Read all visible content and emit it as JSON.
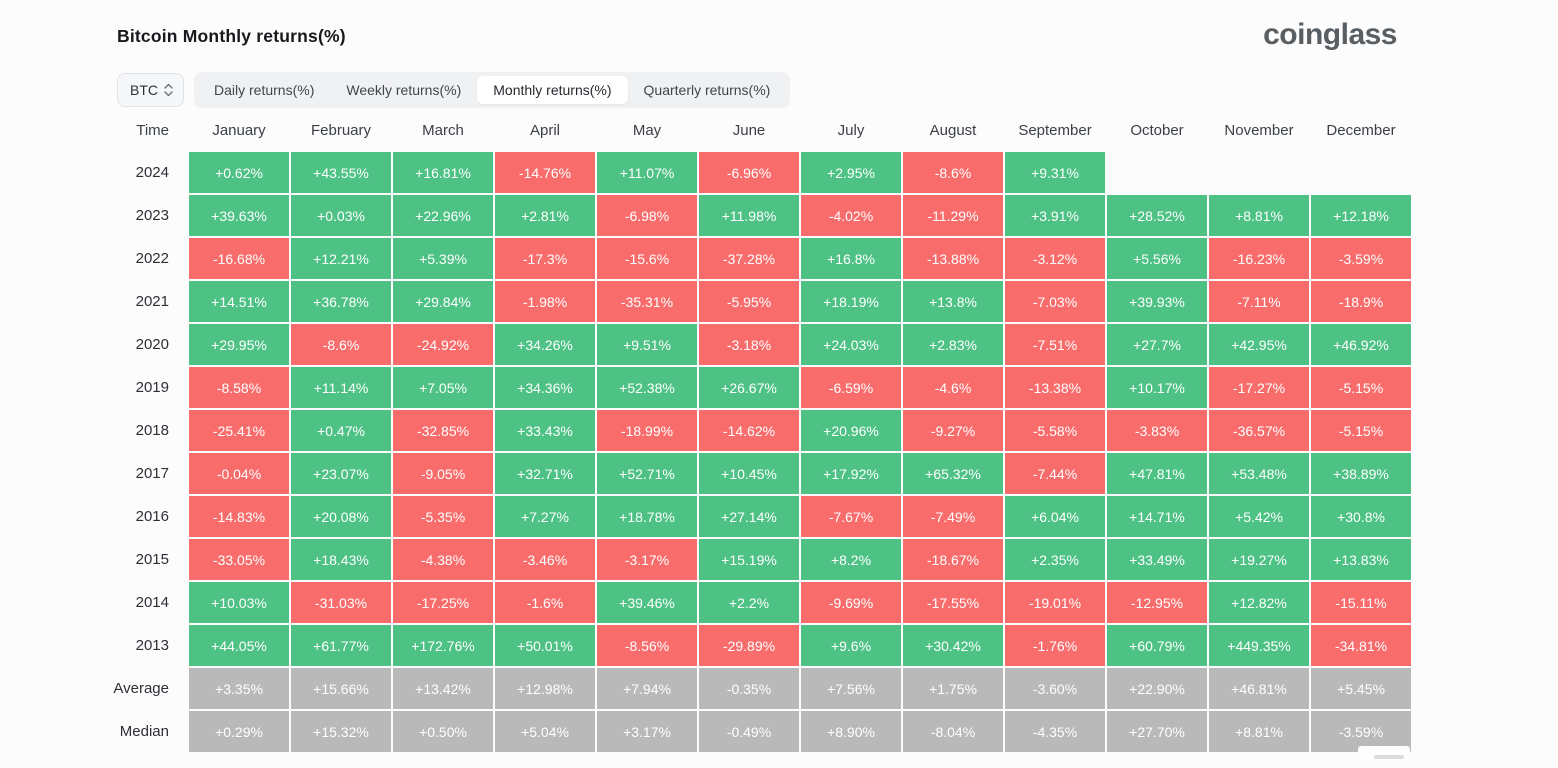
{
  "header": {
    "title": "Bitcoin Monthly returns(%)",
    "brand": "coinglass"
  },
  "controls": {
    "symbol_select": {
      "value": "BTC"
    },
    "tabs": [
      {
        "label": "Daily returns(%)",
        "active": false
      },
      {
        "label": "Weekly returns(%)",
        "active": false
      },
      {
        "label": "Monthly returns(%)",
        "active": true
      },
      {
        "label": "Quarterly returns(%)",
        "active": false
      }
    ]
  },
  "colors": {
    "positive": "#4dc284",
    "negative": "#f96c6c",
    "neutral": "#b9b9b9"
  },
  "chart_data": {
    "type": "heatmap",
    "title": "Bitcoin Monthly returns(%)",
    "columns": [
      "Time",
      "January",
      "February",
      "March",
      "April",
      "May",
      "June",
      "July",
      "August",
      "September",
      "October",
      "November",
      "December"
    ],
    "rows": [
      {
        "label": "2024",
        "neutral": false,
        "values": [
          "+0.62%",
          "+43.55%",
          "+16.81%",
          "-14.76%",
          "+11.07%",
          "-6.96%",
          "+2.95%",
          "-8.6%",
          "+9.31%",
          null,
          null,
          null
        ]
      },
      {
        "label": "2023",
        "neutral": false,
        "values": [
          "+39.63%",
          "+0.03%",
          "+22.96%",
          "+2.81%",
          "-6.98%",
          "+11.98%",
          "-4.02%",
          "-11.29%",
          "+3.91%",
          "+28.52%",
          "+8.81%",
          "+12.18%"
        ]
      },
      {
        "label": "2022",
        "neutral": false,
        "values": [
          "-16.68%",
          "+12.21%",
          "+5.39%",
          "-17.3%",
          "-15.6%",
          "-37.28%",
          "+16.8%",
          "-13.88%",
          "-3.12%",
          "+5.56%",
          "-16.23%",
          "-3.59%"
        ]
      },
      {
        "label": "2021",
        "neutral": false,
        "values": [
          "+14.51%",
          "+36.78%",
          "+29.84%",
          "-1.98%",
          "-35.31%",
          "-5.95%",
          "+18.19%",
          "+13.8%",
          "-7.03%",
          "+39.93%",
          "-7.11%",
          "-18.9%"
        ]
      },
      {
        "label": "2020",
        "neutral": false,
        "values": [
          "+29.95%",
          "-8.6%",
          "-24.92%",
          "+34.26%",
          "+9.51%",
          "-3.18%",
          "+24.03%",
          "+2.83%",
          "-7.51%",
          "+27.7%",
          "+42.95%",
          "+46.92%"
        ]
      },
      {
        "label": "2019",
        "neutral": false,
        "values": [
          "-8.58%",
          "+11.14%",
          "+7.05%",
          "+34.36%",
          "+52.38%",
          "+26.67%",
          "-6.59%",
          "-4.6%",
          "-13.38%",
          "+10.17%",
          "-17.27%",
          "-5.15%"
        ]
      },
      {
        "label": "2018",
        "neutral": false,
        "values": [
          "-25.41%",
          "+0.47%",
          "-32.85%",
          "+33.43%",
          "-18.99%",
          "-14.62%",
          "+20.96%",
          "-9.27%",
          "-5.58%",
          "-3.83%",
          "-36.57%",
          "-5.15%"
        ]
      },
      {
        "label": "2017",
        "neutral": false,
        "values": [
          "-0.04%",
          "+23.07%",
          "-9.05%",
          "+32.71%",
          "+52.71%",
          "+10.45%",
          "+17.92%",
          "+65.32%",
          "-7.44%",
          "+47.81%",
          "+53.48%",
          "+38.89%"
        ]
      },
      {
        "label": "2016",
        "neutral": false,
        "values": [
          "-14.83%",
          "+20.08%",
          "-5.35%",
          "+7.27%",
          "+18.78%",
          "+27.14%",
          "-7.67%",
          "-7.49%",
          "+6.04%",
          "+14.71%",
          "+5.42%",
          "+30.8%"
        ]
      },
      {
        "label": "2015",
        "neutral": false,
        "values": [
          "-33.05%",
          "+18.43%",
          "-4.38%",
          "-3.46%",
          "-3.17%",
          "+15.19%",
          "+8.2%",
          "-18.67%",
          "+2.35%",
          "+33.49%",
          "+19.27%",
          "+13.83%"
        ]
      },
      {
        "label": "2014",
        "neutral": false,
        "values": [
          "+10.03%",
          "-31.03%",
          "-17.25%",
          "-1.6%",
          "+39.46%",
          "+2.2%",
          "-9.69%",
          "-17.55%",
          "-19.01%",
          "-12.95%",
          "+12.82%",
          "-15.11%"
        ]
      },
      {
        "label": "2013",
        "neutral": false,
        "values": [
          "+44.05%",
          "+61.77%",
          "+172.76%",
          "+50.01%",
          "-8.56%",
          "-29.89%",
          "+9.6%",
          "+30.42%",
          "-1.76%",
          "+60.79%",
          "+449.35%",
          "-34.81%"
        ]
      },
      {
        "label": "Average",
        "neutral": true,
        "values": [
          "+3.35%",
          "+15.66%",
          "+13.42%",
          "+12.98%",
          "+7.94%",
          "-0.35%",
          "+7.56%",
          "+1.75%",
          "-3.60%",
          "+22.90%",
          "+46.81%",
          "+5.45%"
        ]
      },
      {
        "label": "Median",
        "neutral": true,
        "values": [
          "+0.29%",
          "+15.32%",
          "+0.50%",
          "+5.04%",
          "+3.17%",
          "-0.49%",
          "+8.90%",
          "-8.04%",
          "-4.35%",
          "+27.70%",
          "+8.81%",
          "-3.59%"
        ]
      }
    ]
  }
}
